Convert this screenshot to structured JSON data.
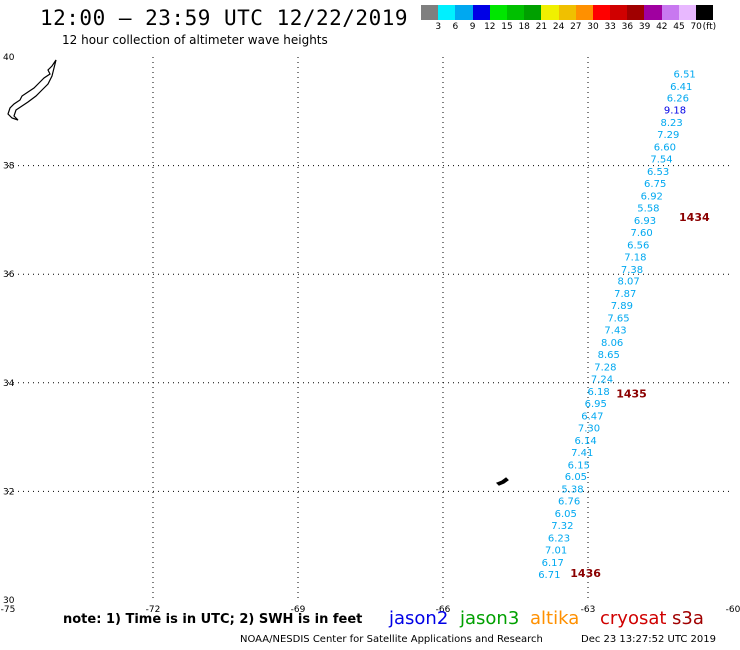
{
  "header": {
    "title": "12:00 – 23:59 UTC 12/22/2019",
    "subtitle": "12 hour collection of altimeter wave heights"
  },
  "legend": {
    "colors": [
      "#7f7f7f",
      "#00f0ff",
      "#00a8f0",
      "#0000e6",
      "#00e600",
      "#00c000",
      "#00a000",
      "#f0f000",
      "#f0c000",
      "#ff9000",
      "#ff0000",
      "#d00000",
      "#a00000",
      "#a000a0",
      "#c878f0",
      "#e8b8ff",
      "#000000"
    ],
    "ticks": [
      "3",
      "6",
      "9",
      "12",
      "15",
      "18",
      "21",
      "24",
      "27",
      "30",
      "33",
      "36",
      "39",
      "42",
      "45",
      "70"
    ],
    "unit": "(ft)"
  },
  "axes": {
    "x_ticks": [
      "-75",
      "-72",
      "-69",
      "-66",
      "-63",
      "-60"
    ],
    "y_ticks": [
      "40",
      "38",
      "36",
      "34",
      "32",
      "30"
    ]
  },
  "chart_data": {
    "type": "scatter",
    "lon_range": [
      -75,
      -60
    ],
    "lat_range": [
      30,
      40
    ],
    "swh_ft": [
      {
        "lon": -61.0,
        "lat": 39.7,
        "value": "6.51",
        "color": "#00a8f0"
      },
      {
        "lon": -61.07,
        "lat": 39.47,
        "value": "6.41",
        "color": "#00a8f0"
      },
      {
        "lon": -61.14,
        "lat": 39.25,
        "value": "6.26",
        "color": "#00a8f0"
      },
      {
        "lon": -61.2,
        "lat": 39.03,
        "value": "9.18",
        "color": "#0000e6"
      },
      {
        "lon": -61.27,
        "lat": 38.8,
        "value": "8.23",
        "color": "#00a8f0"
      },
      {
        "lon": -61.34,
        "lat": 38.58,
        "value": "7.29",
        "color": "#00a8f0"
      },
      {
        "lon": -61.41,
        "lat": 38.35,
        "value": "6.60",
        "color": "#00a8f0"
      },
      {
        "lon": -61.48,
        "lat": 38.13,
        "value": "7.54",
        "color": "#00a8f0"
      },
      {
        "lon": -61.55,
        "lat": 37.9,
        "value": "6.53",
        "color": "#00a8f0"
      },
      {
        "lon": -61.61,
        "lat": 37.68,
        "value": "6.75",
        "color": "#00a8f0"
      },
      {
        "lon": -61.68,
        "lat": 37.45,
        "value": "6.92",
        "color": "#00a8f0"
      },
      {
        "lon": -61.75,
        "lat": 37.23,
        "value": "5.58",
        "color": "#00a8f0"
      },
      {
        "lon": -61.82,
        "lat": 37.0,
        "value": "6.93",
        "color": "#00a8f0"
      },
      {
        "lon": -61.89,
        "lat": 36.78,
        "value": "7.60",
        "color": "#00a8f0"
      },
      {
        "lon": -61.96,
        "lat": 36.55,
        "value": "6.56",
        "color": "#00a8f0"
      },
      {
        "lon": -62.02,
        "lat": 36.33,
        "value": "7.18",
        "color": "#00a8f0"
      },
      {
        "lon": -62.09,
        "lat": 36.1,
        "value": "7.38",
        "color": "#00a8f0"
      },
      {
        "lon": -62.16,
        "lat": 35.88,
        "value": "8.07",
        "color": "#00a8f0"
      },
      {
        "lon": -62.23,
        "lat": 35.65,
        "value": "7.87",
        "color": "#00a8f0"
      },
      {
        "lon": -62.3,
        "lat": 35.43,
        "value": "7.89",
        "color": "#00a8f0"
      },
      {
        "lon": -62.37,
        "lat": 35.2,
        "value": "7.65",
        "color": "#00a8f0"
      },
      {
        "lon": -62.43,
        "lat": 34.98,
        "value": "7.43",
        "color": "#00a8f0"
      },
      {
        "lon": -62.5,
        "lat": 34.75,
        "value": "8.06",
        "color": "#00a8f0"
      },
      {
        "lon": -62.57,
        "lat": 34.53,
        "value": "8.65",
        "color": "#00a8f0"
      },
      {
        "lon": -62.64,
        "lat": 34.3,
        "value": "7.28",
        "color": "#00a8f0"
      },
      {
        "lon": -62.71,
        "lat": 34.08,
        "value": "7.24",
        "color": "#00a8f0"
      },
      {
        "lon": -62.78,
        "lat": 33.85,
        "value": "6.18",
        "color": "#00a8f0"
      },
      {
        "lon": -62.84,
        "lat": 33.63,
        "value": "6.95",
        "color": "#00a8f0"
      },
      {
        "lon": -62.91,
        "lat": 33.4,
        "value": "6.47",
        "color": "#00a8f0"
      },
      {
        "lon": -62.98,
        "lat": 33.18,
        "value": "7.30",
        "color": "#00a8f0"
      },
      {
        "lon": -63.05,
        "lat": 32.95,
        "value": "6.14",
        "color": "#00a8f0"
      },
      {
        "lon": -63.12,
        "lat": 32.73,
        "value": "7.41",
        "color": "#00a8f0"
      },
      {
        "lon": -63.19,
        "lat": 32.5,
        "value": "6.15",
        "color": "#00a8f0"
      },
      {
        "lon": -63.25,
        "lat": 32.28,
        "value": "6.05",
        "color": "#00a8f0"
      },
      {
        "lon": -63.32,
        "lat": 32.05,
        "value": "5.38",
        "color": "#00a8f0"
      },
      {
        "lon": -63.39,
        "lat": 31.83,
        "value": "6.76",
        "color": "#00a8f0"
      },
      {
        "lon": -63.46,
        "lat": 31.6,
        "value": "6.05",
        "color": "#00a8f0"
      },
      {
        "lon": -63.53,
        "lat": 31.38,
        "value": "7.32",
        "color": "#00a8f0"
      },
      {
        "lon": -63.6,
        "lat": 31.15,
        "value": "6.23",
        "color": "#00a8f0"
      },
      {
        "lon": -63.66,
        "lat": 30.93,
        "value": "7.01",
        "color": "#00a8f0"
      },
      {
        "lon": -63.73,
        "lat": 30.7,
        "value": "6.17",
        "color": "#00a8f0"
      },
      {
        "lon": -63.8,
        "lat": 30.48,
        "value": "6.71",
        "color": "#00a8f0"
      }
    ],
    "time_labels": [
      {
        "lon": -60.8,
        "lat": 37.05,
        "value": "1434"
      },
      {
        "lon": -62.1,
        "lat": 33.8,
        "value": "1435"
      },
      {
        "lon": -63.05,
        "lat": 30.5,
        "value": "1436"
      }
    ]
  },
  "satellites": [
    {
      "name": "jason2",
      "color": "#0000e6"
    },
    {
      "name": "jason3",
      "color": "#00a000"
    },
    {
      "name": "altika",
      "color": "#ff9000"
    },
    {
      "name": "cryosat",
      "color": "#d00000"
    },
    {
      "name": "s3a",
      "color": "#a00000"
    }
  ],
  "footer": {
    "note": "note: 1) Time is in UTC; 2) SWH is in feet",
    "credit": "NOAA/NESDIS Center for Satellite Applications and Research",
    "timestamp": "Dec 23 13:27:52 UTC 2019"
  },
  "colors": {
    "swh_text": "#00a8f0",
    "time_text": "#8b0000"
  }
}
